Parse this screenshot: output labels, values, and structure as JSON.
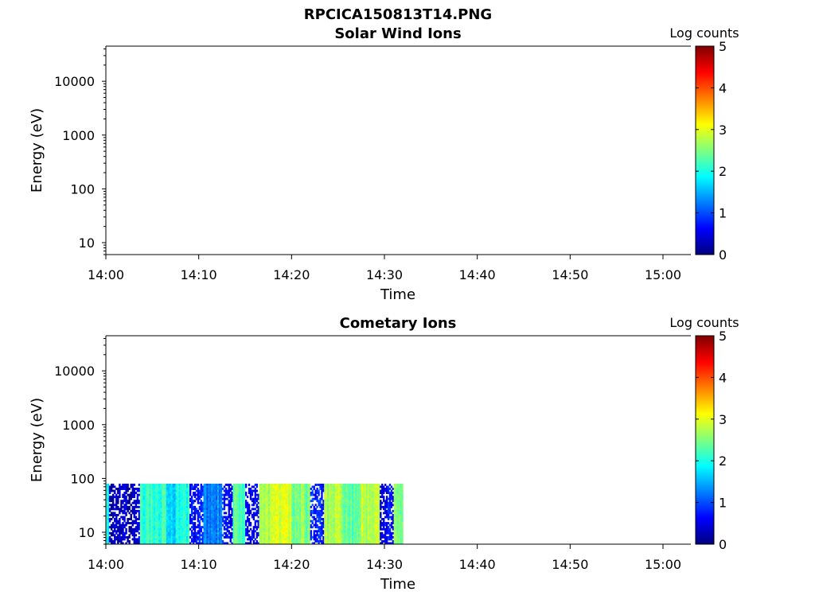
{
  "figure": {
    "title": "RPCICA150813T14.PNG"
  },
  "colorscale": {
    "name": "jet",
    "colors": [
      "#00007f",
      "#0000ff",
      "#007fff",
      "#00ffff",
      "#7fff7f",
      "#ffff00",
      "#ff7f00",
      "#ff0000",
      "#7f0000"
    ]
  },
  "chart_data": [
    {
      "type": "heatmap",
      "title": "Solar Wind Ions",
      "xlabel": "Time",
      "ylabel": "Energy (eV)",
      "x_ticks": [
        "14:00",
        "14:10",
        "14:20",
        "14:30",
        "14:40",
        "14:50",
        "15:00"
      ],
      "y_ticks": [
        "10",
        "100",
        "1000",
        "10000"
      ],
      "y_scale": "log",
      "ylim": [
        6,
        45000
      ],
      "xlim": [
        "14:00",
        "15:03"
      ],
      "colorbar": {
        "label": "Log counts",
        "range": [
          0,
          5
        ],
        "ticks": [
          "0",
          "1",
          "2",
          "3",
          "4",
          "5"
        ]
      },
      "data": []
    },
    {
      "type": "heatmap",
      "title": "Cometary Ions",
      "xlabel": "Time",
      "ylabel": "Energy (eV)",
      "x_ticks": [
        "14:00",
        "14:10",
        "14:20",
        "14:30",
        "14:40",
        "14:50",
        "15:00"
      ],
      "y_ticks": [
        "10",
        "100",
        "1000",
        "10000"
      ],
      "y_scale": "log",
      "ylim": [
        6,
        45000
      ],
      "xlim": [
        "14:00",
        "15:03"
      ],
      "colorbar": {
        "label": "Log counts",
        "range": [
          0,
          5
        ],
        "ticks": [
          "0",
          "1",
          "2",
          "3",
          "4",
          "5"
        ]
      },
      "energy_range_ev": [
        6,
        80
      ],
      "data_time_range": [
        "14:00",
        "14:32"
      ],
      "bands": [
        {
          "start": "14:00",
          "end": "14:00:20",
          "log_counts": 2.0,
          "sparse": false
        },
        {
          "start": "14:00:20",
          "end": "14:03:40",
          "log_counts": 0.3,
          "sparse": true
        },
        {
          "start": "14:03:40",
          "end": "14:06:30",
          "log_counts": 2.1,
          "sparse": false
        },
        {
          "start": "14:06:30",
          "end": "14:07:30",
          "log_counts": 1.6,
          "sparse": false
        },
        {
          "start": "14:07:30",
          "end": "14:09:00",
          "log_counts": 2.0,
          "sparse": false
        },
        {
          "start": "14:09:00",
          "end": "14:10:30",
          "log_counts": 0.6,
          "sparse": true
        },
        {
          "start": "14:10:30",
          "end": "14:12:30",
          "log_counts": 1.3,
          "sparse": false
        },
        {
          "start": "14:12:30",
          "end": "14:13:40",
          "log_counts": 0.7,
          "sparse": true
        },
        {
          "start": "14:13:40",
          "end": "14:15:00",
          "log_counts": 2.3,
          "sparse": false
        },
        {
          "start": "14:15:00",
          "end": "14:16:30",
          "log_counts": 0.5,
          "sparse": true
        },
        {
          "start": "14:16:30",
          "end": "14:18:00",
          "log_counts": 2.7,
          "sparse": false
        },
        {
          "start": "14:18:00",
          "end": "14:20:00",
          "log_counts": 3.0,
          "sparse": false
        },
        {
          "start": "14:20:00",
          "end": "14:22:00",
          "log_counts": 2.5,
          "sparse": false
        },
        {
          "start": "14:22:00",
          "end": "14:23:30",
          "log_counts": 0.8,
          "sparse": true
        },
        {
          "start": "14:23:30",
          "end": "14:25:30",
          "log_counts": 2.7,
          "sparse": false
        },
        {
          "start": "14:25:30",
          "end": "14:27:30",
          "log_counts": 2.4,
          "sparse": false
        },
        {
          "start": "14:27:30",
          "end": "14:29:00",
          "log_counts": 2.8,
          "sparse": false
        },
        {
          "start": "14:29:00",
          "end": "14:29:30",
          "log_counts": 3.0,
          "sparse": false
        },
        {
          "start": "14:29:30",
          "end": "14:31:00",
          "log_counts": 0.6,
          "sparse": true
        },
        {
          "start": "14:31:00",
          "end": "14:32:00",
          "log_counts": 2.4,
          "sparse": false
        }
      ]
    }
  ]
}
